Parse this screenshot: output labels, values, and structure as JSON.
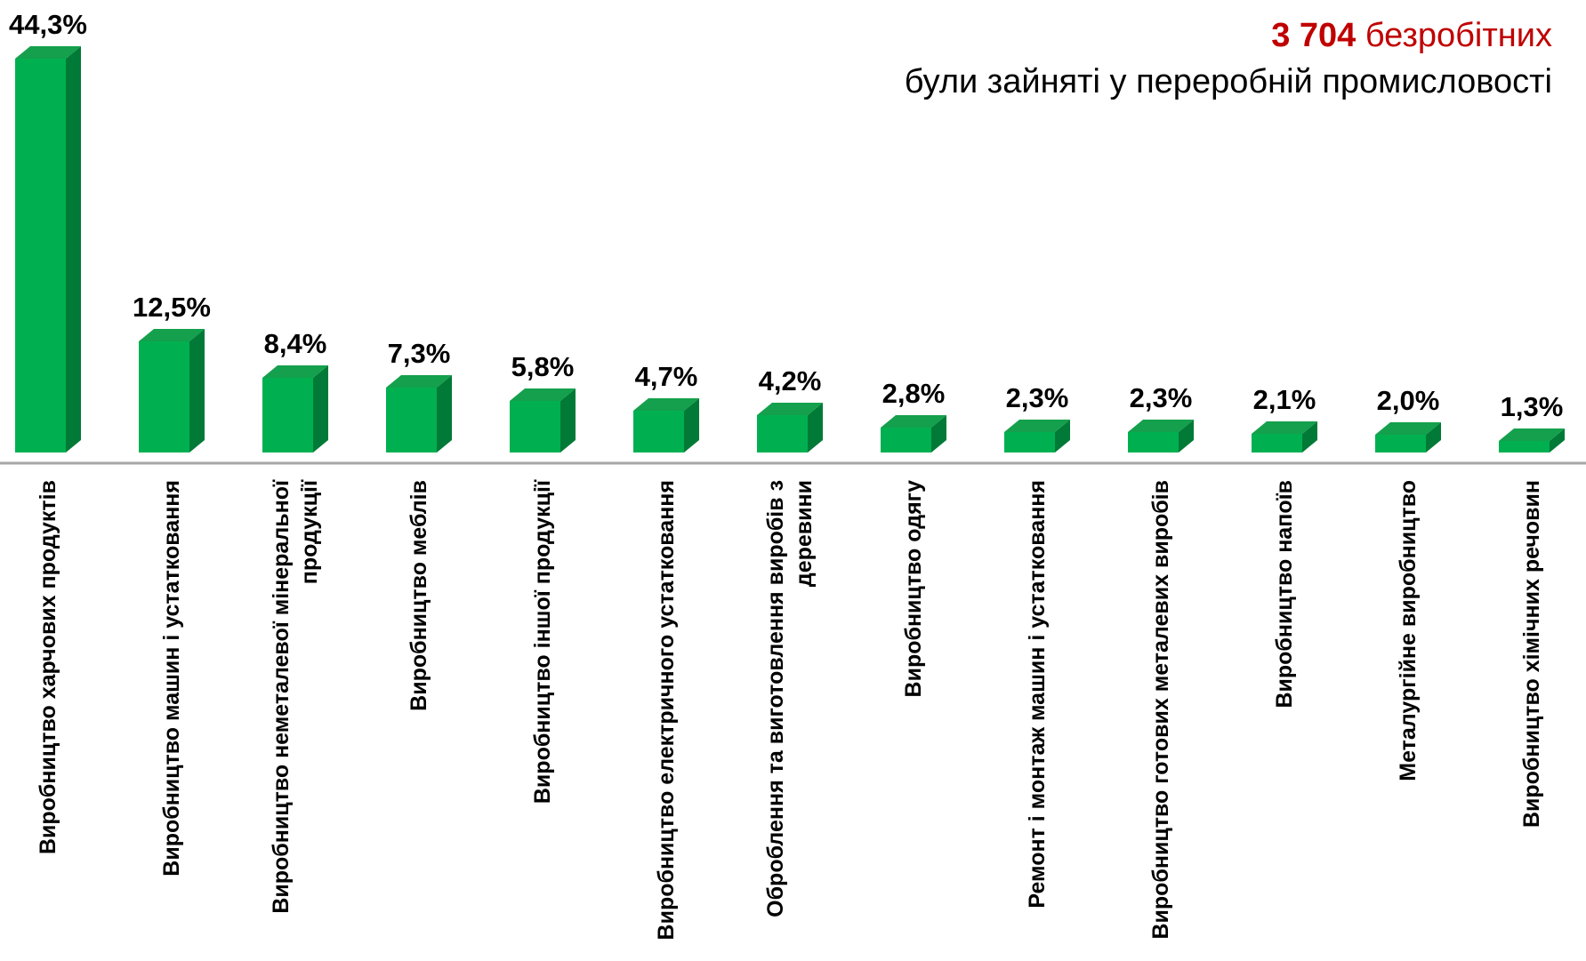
{
  "chart_data": {
    "type": "bar3d",
    "annotation": {
      "number": "3 704",
      "unit": "безробітних",
      "text": "були зайняті у переробній промисловості"
    },
    "categories": [
      "Виробництво харчових продуктів",
      "Виробництво машин і устатковання",
      "Виробництво неметалевої мінеральної продукції",
      "Виробництво меблів",
      "Виробництво іншої продукції",
      "Виробництво електричного устатковання",
      "Оброблення та виготовлення виробів з деревини",
      "Виробництво одягу",
      "Ремонт і монтаж машин і устатковання",
      "Виробництво готових металевих виробів",
      "Виробництво напоїв",
      "Металургійне виробництво",
      "Виробництво хімічних речовин"
    ],
    "values": [
      44.3,
      12.5,
      8.4,
      7.3,
      5.8,
      4.7,
      4.2,
      2.8,
      2.3,
      2.3,
      2.1,
      2.0,
      1.3
    ],
    "value_labels": [
      "44,3%",
      "12,5%",
      "8,4%",
      "7,3%",
      "5,8%",
      "4,7%",
      "4,2%",
      "2,8%",
      "2,3%",
      "2,3%",
      "2,1%",
      "2,0%",
      "1,3%"
    ],
    "color": "#00b050",
    "ylim": [
      0,
      50
    ]
  }
}
